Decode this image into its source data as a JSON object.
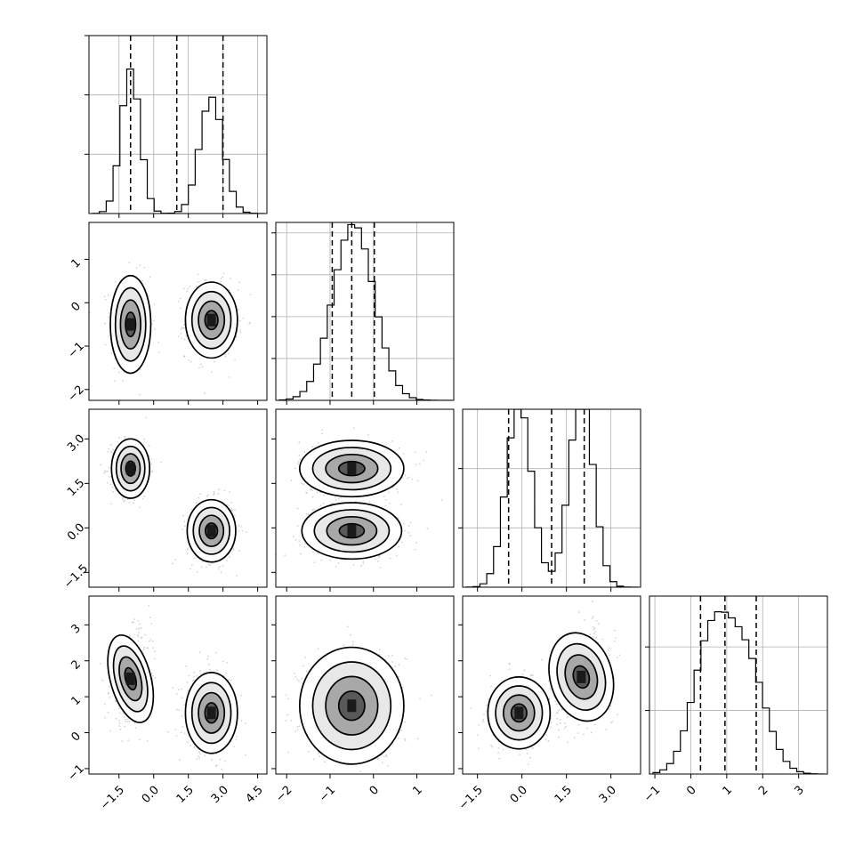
{
  "chart_data": {
    "type": "corner",
    "parameters": 4,
    "colors": {
      "ink": "#000000",
      "grid": "#b0b0b0",
      "scatter": "#808080",
      "contour_fill": [
        "#ffffff",
        "#e8e8e8",
        "#a8a8a8",
        "#595959",
        "#1a1a1a"
      ]
    },
    "ranges": [
      [
        -2.8,
        4.9
      ],
      [
        -2.25,
        1.85
      ],
      [
        -2.0,
        4.0
      ],
      [
        -1.15,
        3.8
      ]
    ],
    "diag_ylim": [
      [
        0,
        0.6
      ],
      [
        0,
        0.85
      ],
      [
        0,
        0.45
      ],
      [
        0,
        0.56
      ]
    ],
    "ticks": [
      {
        "values": [
          -1.5,
          0.0,
          1.5,
          3.0,
          4.5
        ],
        "labels": [
          "−1.5",
          "0.0",
          "1.5",
          "3.0",
          "4.5"
        ]
      },
      {
        "values": [
          -2,
          -1,
          0,
          1
        ],
        "labels": [
          "−2",
          "−1",
          "0",
          "1"
        ]
      },
      {
        "values": [
          -1.5,
          0.0,
          1.5,
          3.0
        ],
        "labels": [
          "−1.5",
          "0.0",
          "1.5",
          "3.0"
        ]
      },
      {
        "values": [
          -1,
          0,
          1,
          2,
          3
        ],
        "labels": [
          "−1",
          "0",
          "1",
          "2",
          "3"
        ]
      }
    ],
    "diag_grid": [
      [
        0.2,
        0.4,
        0.6
      ],
      [
        0.2,
        0.4,
        0.6,
        0.8
      ],
      [
        0.15,
        0.3
      ],
      [
        0.2,
        0.4
      ]
    ],
    "quantiles": [
      [
        -1.0,
        1.0,
        3.0
      ],
      [
        -0.95,
        -0.5,
        0.02
      ],
      [
        -0.45,
        1.0,
        2.1
      ],
      [
        0.27,
        0.95,
        1.82
      ]
    ],
    "hist": [
      {
        "param": 0,
        "bins": 20,
        "components": [
          {
            "w": 0.5,
            "mean": -1.0,
            "sd": 0.4
          },
          {
            "w": 0.5,
            "mean": 2.5,
            "sd": 0.5
          }
        ]
      },
      {
        "param": 1,
        "bins": 20,
        "components": [
          {
            "w": 1.0,
            "mean": -0.46,
            "sd": 0.47
          }
        ]
      },
      {
        "param": 2,
        "bins": 20,
        "components": [
          {
            "w": 0.5,
            "mean": -0.1,
            "sd": 0.42
          },
          {
            "w": 0.5,
            "mean": 2.0,
            "sd": 0.4
          }
        ]
      },
      {
        "param": 3,
        "bins": 20,
        "components": [
          {
            "w": 0.5,
            "mean": 0.55,
            "sd": 0.5
          },
          {
            "w": 0.5,
            "mean": 1.5,
            "sd": 0.55
          }
        ]
      }
    ],
    "pairs": [
      {
        "x": 0,
        "y": 1,
        "clusters": [
          {
            "cx": -1.0,
            "cy": -0.5,
            "sx": 0.35,
            "sy": 0.45,
            "rho": 0.0
          },
          {
            "cx": 2.5,
            "cy": -0.4,
            "sx": 0.45,
            "sy": 0.35,
            "rho": 0.0
          }
        ]
      },
      {
        "x": 0,
        "y": 2,
        "clusters": [
          {
            "cx": -1.0,
            "cy": 2.0,
            "sx": 0.33,
            "sy": 0.4,
            "rho": 0.0
          },
          {
            "cx": 2.5,
            "cy": -0.1,
            "sx": 0.42,
            "sy": 0.42,
            "rho": 0.0
          }
        ]
      },
      {
        "x": 1,
        "y": 2,
        "clusters": [
          {
            "cx": -0.5,
            "cy": 2.0,
            "sx": 0.48,
            "sy": 0.38,
            "rho": 0.0
          },
          {
            "cx": -0.5,
            "cy": -0.1,
            "sx": 0.46,
            "sy": 0.38,
            "rho": 0.0
          }
        ]
      },
      {
        "x": 0,
        "y": 3,
        "clusters": [
          {
            "cx": -1.0,
            "cy": 1.5,
            "sx": 0.35,
            "sy": 0.5,
            "rho": 0.3
          },
          {
            "cx": 2.5,
            "cy": 0.55,
            "sx": 0.45,
            "sy": 0.45,
            "rho": 0.0
          }
        ]
      },
      {
        "x": 1,
        "y": 3,
        "clusters": [
          {
            "cx": -0.5,
            "cy": 0.75,
            "sx": 0.48,
            "sy": 0.65,
            "rho": 0.0
          }
        ]
      },
      {
        "x": 2,
        "y": 3,
        "clusters": [
          {
            "cx": -0.1,
            "cy": 0.55,
            "sx": 0.42,
            "sy": 0.4,
            "rho": 0.0
          },
          {
            "cx": 2.0,
            "cy": 1.55,
            "sx": 0.42,
            "sy": 0.5,
            "rho": 0.3
          }
        ]
      }
    ],
    "contour_levels_sigma": [
      0.5,
      1.0,
      1.5,
      2.0
    ],
    "scatter_points_per_cluster": 420
  }
}
